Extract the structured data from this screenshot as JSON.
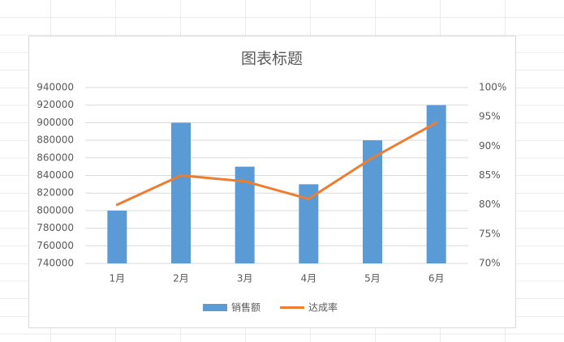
{
  "chart_data": {
    "type": "bar-line",
    "title": "图表标题",
    "categories": [
      "1月",
      "2月",
      "3月",
      "4月",
      "5月",
      "6月"
    ],
    "series": [
      {
        "name": "销售额",
        "type": "bar",
        "color": "#5b9bd5",
        "values": [
          800000,
          900000,
          850000,
          830000,
          880000,
          920000
        ]
      },
      {
        "name": "达成率",
        "type": "line",
        "axis": "y2",
        "color": "#ed7d31",
        "values": [
          80,
          85,
          84,
          81,
          88,
          94
        ]
      }
    ],
    "ylim": [
      740000,
      940000
    ],
    "yticks": [
      740000,
      760000,
      780000,
      800000,
      820000,
      840000,
      860000,
      880000,
      900000,
      920000,
      940000
    ],
    "y2lim": [
      70,
      100
    ],
    "y2ticks": [
      {
        "value": 70,
        "label": "70%"
      },
      {
        "value": 75,
        "label": "75%"
      },
      {
        "value": 80,
        "label": "80%"
      },
      {
        "value": 85,
        "label": "85%"
      },
      {
        "value": 90,
        "label": "90%"
      },
      {
        "value": 95,
        "label": "95%"
      },
      {
        "value": 100,
        "label": "100%"
      }
    ],
    "grid": true,
    "legend": "bottom"
  }
}
